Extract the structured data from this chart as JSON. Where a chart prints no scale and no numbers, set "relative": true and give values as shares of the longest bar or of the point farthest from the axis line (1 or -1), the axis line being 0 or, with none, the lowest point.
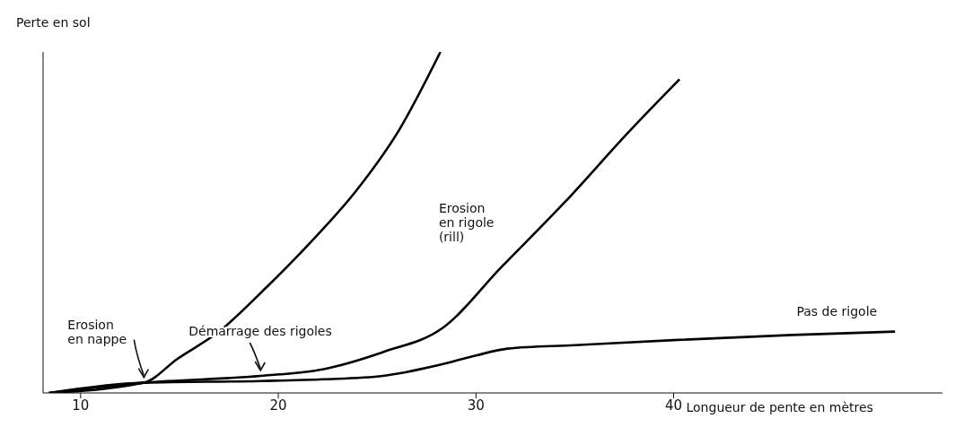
{
  "chart_data": {
    "type": "line",
    "relative": true,
    "ylabel": "Perte en sol",
    "xlabel": "Longueur de pente en mètres",
    "xlim": [
      8.1,
      53.6
    ],
    "xticks": [
      10,
      20,
      30,
      40
    ],
    "grid": false,
    "legend": false,
    "marker": "none",
    "line_style": "solid",
    "series": [
      {
        "color": "#000000",
        "x": [
          8.4,
          13.2,
          14.9,
          17.0,
          19.4,
          21.6,
          23.9,
          26.1,
          28.2
        ],
        "values": [
          0,
          0.03,
          0.1,
          0.18,
          0.31,
          0.44,
          0.59,
          0.77,
          1
        ]
      },
      {
        "name": "Erosion\nen rigole\n(rill)",
        "color": "#000000",
        "x": [
          8.4,
          13.2,
          19.1,
          22.3,
          25.3,
          28.3,
          31.3,
          34.5,
          37.8,
          40.3
        ],
        "values": [
          0,
          0.03,
          0.05,
          0.07,
          0.12,
          0.19,
          0.37,
          0.56,
          0.77,
          0.92
        ]
      },
      {
        "name": "Pas de rigole",
        "color": "#000000",
        "x": [
          8.4,
          13.2,
          19.1,
          22.3,
          25.3,
          28.0,
          30.0,
          31.6,
          35.0,
          40.0,
          46.0,
          51.2
        ],
        "values": [
          0,
          0.03,
          0.035,
          0.04,
          0.05,
          0.08,
          0.11,
          0.13,
          0.14,
          0.155,
          0.17,
          0.18
        ]
      }
    ],
    "annotations": [
      {
        "text": "Erosion\nen nappe",
        "x": 13.2,
        "y": 0.03
      },
      {
        "text": "Démarrage des rigoles",
        "x": 19.1,
        "y": 0.05
      }
    ]
  }
}
